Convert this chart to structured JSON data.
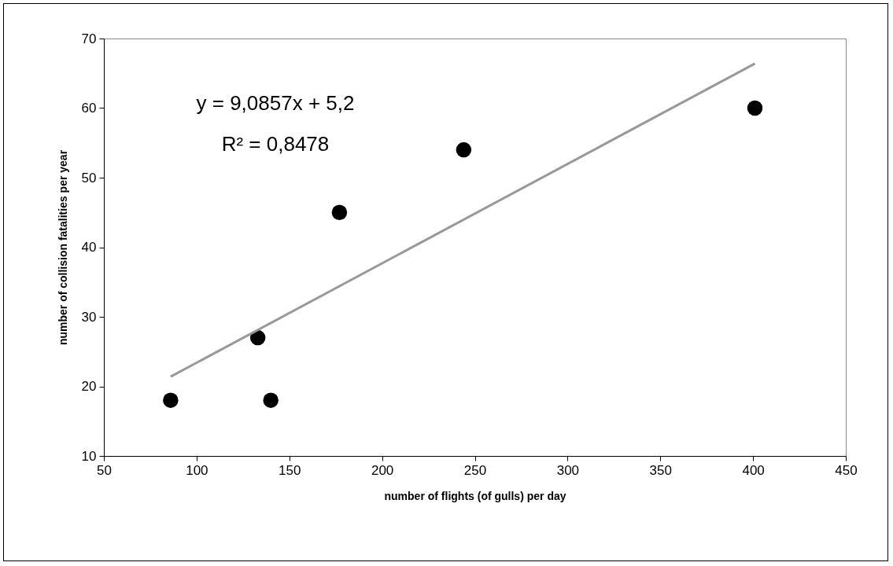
{
  "chart_data": {
    "type": "scatter",
    "xlabel": "number of flights (of gulls) per day",
    "ylabel": "number of collision fatalities per year",
    "annotations": [
      "y = 9,0857x + 5,2",
      "R² = 0,8478"
    ],
    "series": [
      {
        "marker": "circle",
        "color": "#000000",
        "x": [
          86,
          133,
          140,
          177,
          244,
          401
        ],
        "values": [
          18,
          27,
          18,
          45,
          54,
          60
        ]
      },
      {
        "type": "line",
        "marker": "none",
        "color": "#999999",
        "x": [
          86,
          401
        ],
        "values": [
          21.4,
          66.4
        ]
      }
    ],
    "xlim": [
      50,
      450
    ],
    "xticks": [
      50,
      100,
      150,
      200,
      250,
      300,
      350,
      400,
      450
    ],
    "ylim": [
      10,
      70
    ],
    "yticks": [
      10,
      20,
      30,
      40,
      50,
      60,
      70
    ],
    "grid": false,
    "line_style": "solid"
  }
}
